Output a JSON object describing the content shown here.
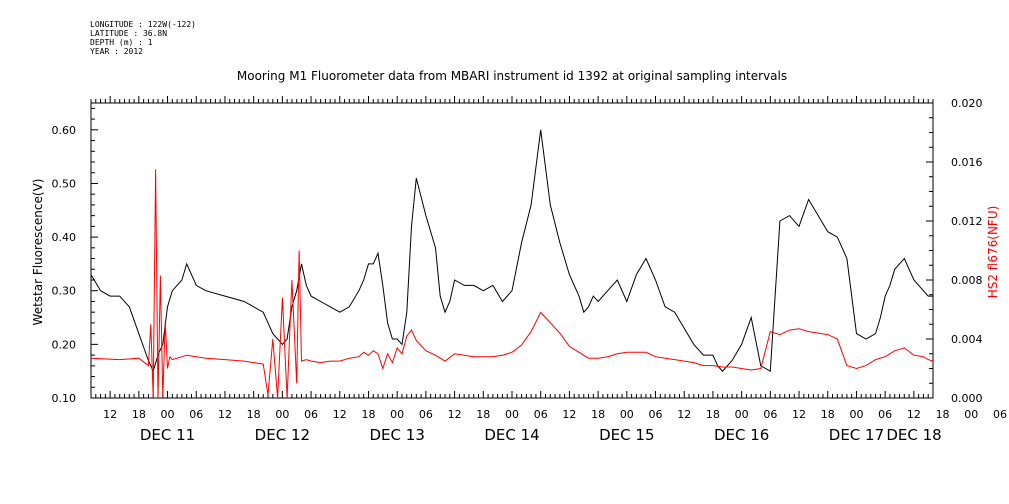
{
  "meta": {
    "longitude": "LONGITUDE : 122W(-122)",
    "latitude": "LATITUDE : 36.8N",
    "depth": "DEPTH (m) : 1",
    "year": "YEAR : 2012"
  },
  "chart_data": {
    "type": "line",
    "title": "Mooring M1 Fluorometer data from MBARI instrument id 1392 at original sampling intervals",
    "ylabel_left": "Wetstar Fluorescence(V)",
    "ylabel_right": "HS2 fl676(NFU)",
    "ylim_left": [
      0.1,
      0.65
    ],
    "ylim_right": [
      0.0,
      0.02
    ],
    "yticks_left": [
      "0.10",
      "0.20",
      "0.30",
      "0.40",
      "0.50",
      "0.60"
    ],
    "yticks_right": [
      "0.000",
      "0.004",
      "0.008",
      "0.012",
      "0.016",
      "0.020"
    ],
    "xlim_hours": [
      -16,
      160
    ],
    "xtick_hour_labels": [
      "12",
      "18",
      "00",
      "06",
      "12",
      "18",
      "00",
      "06",
      "12",
      "18",
      "00",
      "06",
      "12",
      "18",
      "00",
      "06",
      "12",
      "18",
      "00",
      "06",
      "12",
      "18",
      "00",
      "06",
      "12",
      "18",
      "00",
      "06",
      "12",
      "18",
      "00",
      "06"
    ],
    "date_labels": [
      "DEC 11",
      "DEC 12",
      "DEC 13",
      "DEC 14",
      "DEC 15",
      "DEC 16",
      "DEC 17",
      "DEC 18"
    ],
    "colors": {
      "series1": "#000000",
      "series2": "#ff0000"
    },
    "series": [
      {
        "axis": "left",
        "x": [
          -16,
          -14,
          -12,
          -10,
          -8,
          -6,
          -4,
          -3,
          -2,
          -1,
          0,
          1,
          2,
          3,
          4,
          5,
          6,
          8,
          12,
          16,
          20,
          22,
          23,
          24,
          25,
          26,
          27,
          28,
          29,
          30,
          32,
          34,
          36,
          38,
          40,
          41,
          42,
          43,
          44,
          45,
          46,
          47,
          48,
          49,
          50,
          51,
          52,
          54,
          56,
          57,
          58,
          59,
          60,
          62,
          64,
          66,
          68,
          70,
          72,
          74,
          76,
          78,
          80,
          82,
          84,
          86,
          87,
          88,
          89,
          90,
          92,
          94,
          96,
          98,
          100,
          102,
          104,
          106,
          108,
          110,
          112,
          114,
          115,
          116,
          118,
          120,
          122,
          124,
          126,
          128,
          130,
          132,
          134,
          136,
          138,
          140,
          142,
          144,
          146,
          148,
          149,
          150,
          151,
          152,
          154,
          156,
          158,
          159,
          160
        ],
        "y": [
          0.33,
          0.3,
          0.29,
          0.29,
          0.27,
          0.22,
          0.17,
          0.15,
          0.18,
          0.2,
          0.27,
          0.3,
          0.31,
          0.32,
          0.35,
          0.33,
          0.31,
          0.3,
          0.29,
          0.28,
          0.26,
          0.22,
          0.21,
          0.2,
          0.21,
          0.27,
          0.3,
          0.35,
          0.31,
          0.29,
          0.28,
          0.27,
          0.26,
          0.27,
          0.3,
          0.32,
          0.35,
          0.35,
          0.37,
          0.31,
          0.24,
          0.21,
          0.21,
          0.2,
          0.26,
          0.42,
          0.51,
          0.44,
          0.38,
          0.29,
          0.26,
          0.28,
          0.32,
          0.31,
          0.31,
          0.3,
          0.31,
          0.28,
          0.3,
          0.39,
          0.46,
          0.6,
          0.46,
          0.39,
          0.33,
          0.29,
          0.26,
          0.27,
          0.29,
          0.28,
          0.3,
          0.32,
          0.28,
          0.33,
          0.36,
          0.32,
          0.27,
          0.26,
          0.23,
          0.2,
          0.18,
          0.18,
          0.16,
          0.15,
          0.17,
          0.2,
          0.25,
          0.16,
          0.15,
          0.43,
          0.44,
          0.42,
          0.47,
          0.44,
          0.41,
          0.4,
          0.36,
          0.22,
          0.21,
          0.22,
          0.25,
          0.29,
          0.31,
          0.34,
          0.36,
          0.32,
          0.3,
          0.29,
          0.29
        ]
      },
      {
        "axis": "right",
        "x": [
          -16,
          -10,
          -6,
          -4,
          -3.5,
          -3,
          -2.5,
          -2,
          -1.5,
          -1,
          -0.5,
          0,
          0.5,
          1,
          2,
          4,
          8,
          12,
          16,
          18,
          20,
          21,
          22,
          23,
          24,
          25,
          26,
          27,
          27.5,
          28,
          29,
          30,
          32,
          34,
          36,
          38,
          40,
          41,
          42,
          43,
          44,
          45,
          46,
          47,
          48,
          49,
          50,
          51,
          52,
          54,
          56,
          58,
          60,
          62,
          64,
          66,
          68,
          70,
          72,
          74,
          76,
          78,
          80,
          82,
          84,
          86,
          88,
          90,
          92,
          94,
          96,
          98,
          100,
          102,
          104,
          106,
          108,
          110,
          112,
          114,
          116,
          118,
          120,
          122,
          124,
          126,
          128,
          130,
          132,
          134,
          136,
          138,
          140,
          142,
          144,
          146,
          148,
          150,
          152,
          154,
          156,
          158,
          159,
          160
        ],
        "y": [
          0.0027,
          0.0026,
          0.0027,
          0.0022,
          0.005,
          0.0,
          0.0155,
          0.0,
          0.0083,
          0.0,
          0.0052,
          0.002,
          0.0028,
          0.0026,
          0.0027,
          0.0029,
          0.0027,
          0.0026,
          0.0025,
          0.0024,
          0.0023,
          0.0002,
          0.004,
          0.0,
          0.0068,
          0.0,
          0.008,
          0.001,
          0.01,
          0.0025,
          0.0026,
          0.0025,
          0.0024,
          0.0025,
          0.0025,
          0.0027,
          0.0028,
          0.0031,
          0.0029,
          0.0032,
          0.003,
          0.002,
          0.003,
          0.0024,
          0.0034,
          0.003,
          0.0042,
          0.0046,
          0.0039,
          0.0032,
          0.0029,
          0.0025,
          0.003,
          0.0029,
          0.0028,
          0.0028,
          0.0028,
          0.0029,
          0.0031,
          0.0036,
          0.0045,
          0.0058,
          0.0051,
          0.0044,
          0.0035,
          0.0031,
          0.0027,
          0.0027,
          0.0028,
          0.003,
          0.0031,
          0.0031,
          0.0031,
          0.0028,
          0.0027,
          0.0026,
          0.0025,
          0.0024,
          0.0022,
          0.0022,
          0.0021,
          0.0021,
          0.002,
          0.0019,
          0.002,
          0.0045,
          0.0043,
          0.0046,
          0.0047,
          0.0045,
          0.0044,
          0.0043,
          0.004,
          0.0022,
          0.002,
          0.0022,
          0.0026,
          0.0028,
          0.0032,
          0.0034,
          0.0029,
          0.0028,
          0.0026,
          0.0025
        ]
      }
    ]
  }
}
